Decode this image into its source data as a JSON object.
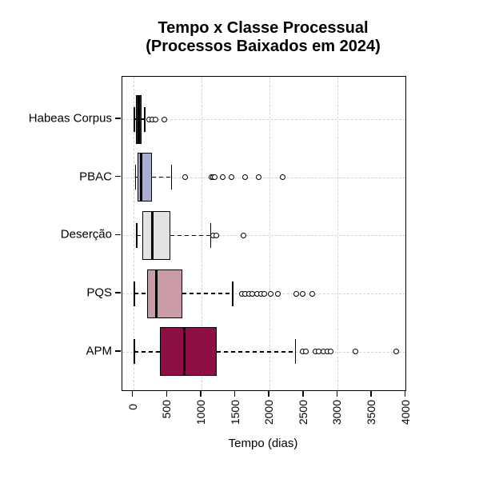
{
  "chart_data": {
    "type": "boxplot",
    "orientation": "horizontal",
    "title_lines": [
      "Tempo x Classe Processual",
      "(Processos Baixados em 2024)"
    ],
    "xlabel": "Tempo (dias)",
    "xlim": [
      0,
      4000
    ],
    "x_ticks": [
      0,
      500,
      1000,
      1500,
      2000,
      2500,
      3000,
      3500,
      4000
    ],
    "grid": {
      "vertical_lines_at": [
        0,
        1000,
        2000,
        3000,
        4000
      ],
      "horizontal_lines": "one per category",
      "style": "dashed",
      "color": "#d2d2d2"
    },
    "series": [
      {
        "label": "Habeas Corpus",
        "box_color": "#232948",
        "whisker_low": 15,
        "q1": 40,
        "median": 80,
        "q3": 125,
        "whisker_high": 170,
        "outliers": [
          235,
          285,
          330,
          450
        ]
      },
      {
        "label": "PBAC",
        "box_color": "#a9aed1",
        "whisker_low": 35,
        "q1": 62,
        "median": 115,
        "q3": 277,
        "whisker_high": 558,
        "outliers": [
          765,
          1145,
          1170,
          1195,
          1315,
          1445,
          1640,
          1840,
          2195
        ]
      },
      {
        "label": "Deserção",
        "box_color": "#e3e3e3",
        "whisker_low": 50,
        "q1": 136,
        "median": 279,
        "q3": 540,
        "whisker_high": 1138,
        "outliers": [
          1175,
          1215,
          1615
        ]
      },
      {
        "label": "PQS",
        "box_color": "#ca9aa5",
        "whisker_low": 15,
        "q1": 206,
        "median": 340,
        "q3": 723,
        "whisker_high": 1458,
        "outliers": [
          1590,
          1640,
          1695,
          1750,
          1810,
          1880,
          1920,
          2020,
          2125,
          2395,
          2480,
          2620
        ]
      },
      {
        "label": "APM",
        "box_color": "#8f0e44",
        "whisker_low": 15,
        "q1": 394,
        "median": 743,
        "q3": 1224,
        "whisker_high": 2377,
        "outliers": [
          2490,
          2530,
          2670,
          2720,
          2795,
          2845,
          2895,
          3255,
          3855
        ]
      }
    ]
  }
}
